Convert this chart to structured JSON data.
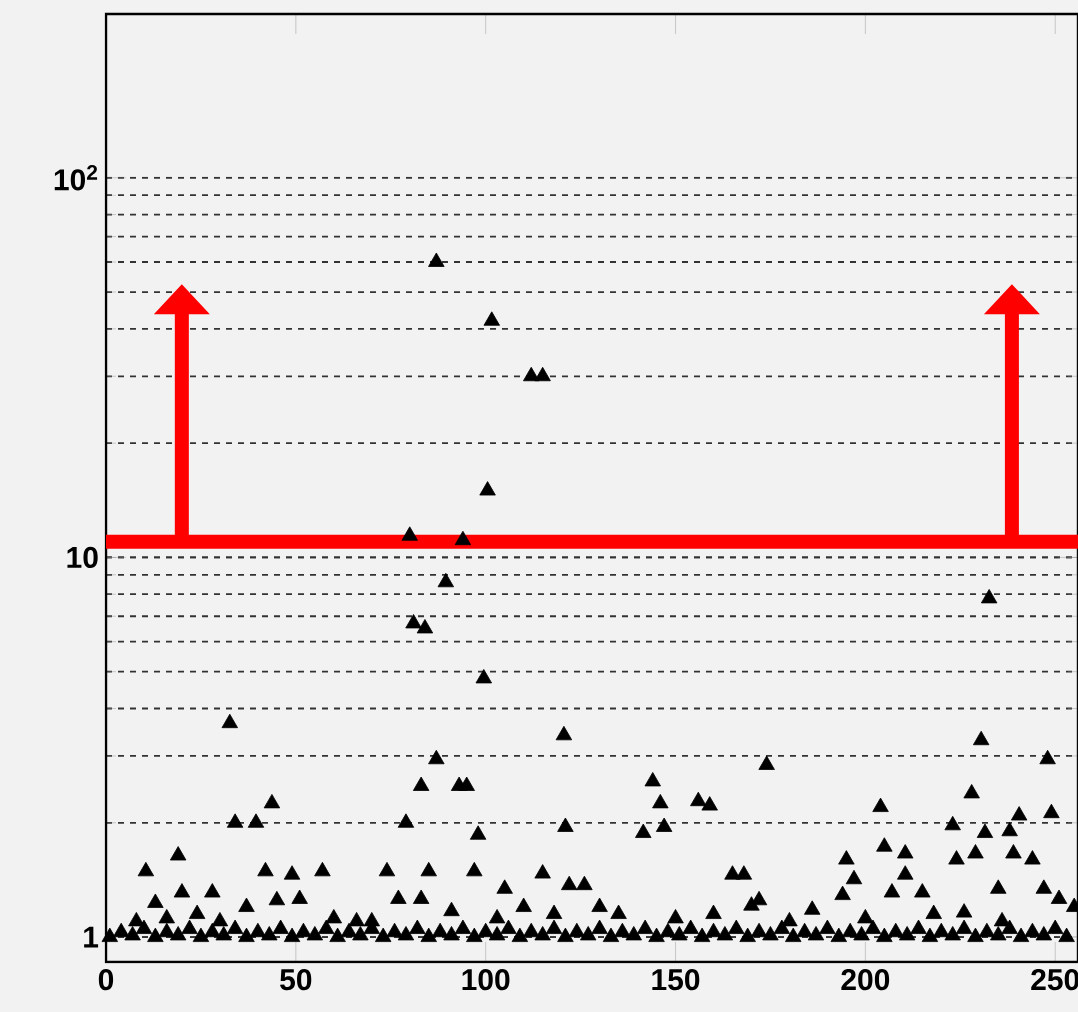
{
  "chart_data": {
    "type": "scatter",
    "x": [
      87,
      101.6,
      112,
      115,
      100.5,
      80,
      94,
      89.5,
      81,
      84,
      99.5,
      232.6,
      32.6,
      87,
      83,
      93,
      95,
      34,
      39.5,
      43.7,
      79,
      98,
      10.5,
      19,
      57,
      42,
      49,
      74,
      85,
      97,
      20,
      28,
      13,
      51,
      77,
      83,
      91,
      105,
      103,
      120.6,
      121,
      174,
      144,
      146,
      147,
      141.5,
      156,
      159,
      165,
      168,
      170,
      172,
      204,
      205,
      210.5,
      195,
      197,
      194,
      210.5,
      215,
      207,
      230.5,
      228,
      248,
      223,
      224,
      231.5,
      229,
      249,
      240.5,
      238,
      239,
      244,
      235,
      247,
      251,
      226,
      122,
      126,
      115,
      24,
      37,
      45,
      60,
      66,
      110,
      118,
      130,
      135,
      150,
      160,
      180,
      186,
      200,
      218,
      236,
      255,
      8,
      16,
      30,
      70,
      1,
      4,
      7,
      10,
      13,
      16,
      19,
      22,
      25,
      28,
      31,
      34,
      37,
      40,
      43,
      46,
      49,
      52,
      55,
      58,
      61,
      64,
      67,
      70,
      73,
      76,
      79,
      82,
      85,
      88,
      91,
      94,
      97,
      100,
      103,
      106,
      109,
      112,
      115,
      118,
      121,
      124,
      127,
      130,
      133,
      136,
      139,
      142,
      145,
      148,
      151,
      154,
      157,
      160,
      163,
      166,
      169,
      172,
      175,
      178,
      181,
      184,
      187,
      190,
      193,
      196,
      199,
      202,
      205,
      208,
      211,
      214,
      217,
      220,
      223,
      226,
      229,
      232,
      235,
      238,
      241,
      244,
      247,
      250,
      253
    ],
    "values": [
      60,
      42,
      30,
      30,
      15,
      11.4,
      11.1,
      8.6,
      6.7,
      6.5,
      4.8,
      7.8,
      3.66,
      2.94,
      2.5,
      2.5,
      2.5,
      2.0,
      2.0,
      2.25,
      2.0,
      1.86,
      1.49,
      1.64,
      1.49,
      1.49,
      1.46,
      1.49,
      1.49,
      1.49,
      1.31,
      1.31,
      1.23,
      1.26,
      1.26,
      1.26,
      1.17,
      1.34,
      1.12,
      3.4,
      1.95,
      2.84,
      2.57,
      2.25,
      1.95,
      1.88,
      2.28,
      2.22,
      1.46,
      1.46,
      1.21,
      1.25,
      2.2,
      1.73,
      1.66,
      1.6,
      1.42,
      1.29,
      1.46,
      1.31,
      1.31,
      3.3,
      2.39,
      2.94,
      1.97,
      1.6,
      1.88,
      1.66,
      2.12,
      2.09,
      1.9,
      1.66,
      1.6,
      1.34,
      1.34,
      1.26,
      1.16,
      1.37,
      1.37,
      1.47,
      1.15,
      1.2,
      1.25,
      1.12,
      1.1,
      1.2,
      1.15,
      1.2,
      1.15,
      1.12,
      1.15,
      1.1,
      1.18,
      1.12,
      1.15,
      1.1,
      1.2,
      1.1,
      1.12,
      1.1,
      1.1,
      1.0,
      1.03,
      1.01,
      1.05,
      1.0,
      1.03,
      1.01,
      1.05,
      1.0,
      1.03,
      1.01,
      1.05,
      1.0,
      1.03,
      1.01,
      1.05,
      1.0,
      1.03,
      1.01,
      1.05,
      1.0,
      1.03,
      1.01,
      1.05,
      1.0,
      1.03,
      1.01,
      1.05,
      1.0,
      1.03,
      1.01,
      1.05,
      1.0,
      1.03,
      1.01,
      1.05,
      1.0,
      1.03,
      1.01,
      1.05,
      1.0,
      1.03,
      1.01,
      1.05,
      1.0,
      1.03,
      1.01,
      1.05,
      1.0,
      1.03,
      1.01,
      1.05,
      1.0,
      1.03,
      1.01,
      1.05,
      1.0,
      1.03,
      1.01,
      1.05,
      1.0,
      1.03,
      1.01,
      1.05,
      1.0,
      1.03,
      1.01,
      1.05,
      1.0,
      1.03,
      1.01,
      1.05,
      1.0,
      1.03,
      1.01,
      1.05,
      1.0,
      1.03,
      1.01,
      1.05,
      1.0,
      1.03,
      1.01,
      1.05,
      1.0
    ],
    "color": "#000000",
    "marker": "triangle",
    "xlim": [
      0,
      256
    ],
    "ylim": [
      0.86,
      270
    ],
    "log": "y",
    "xticks": [
      0,
      50,
      100,
      150,
      200,
      250
    ],
    "yticks": [
      1,
      10,
      {
        "value": 100,
        "label": "10$^{2}$"
      }
    ],
    "grid": "y",
    "ref_lines": [
      {
        "axis": "y",
        "value": 11,
        "color": "#ff0000"
      }
    ]
  }
}
